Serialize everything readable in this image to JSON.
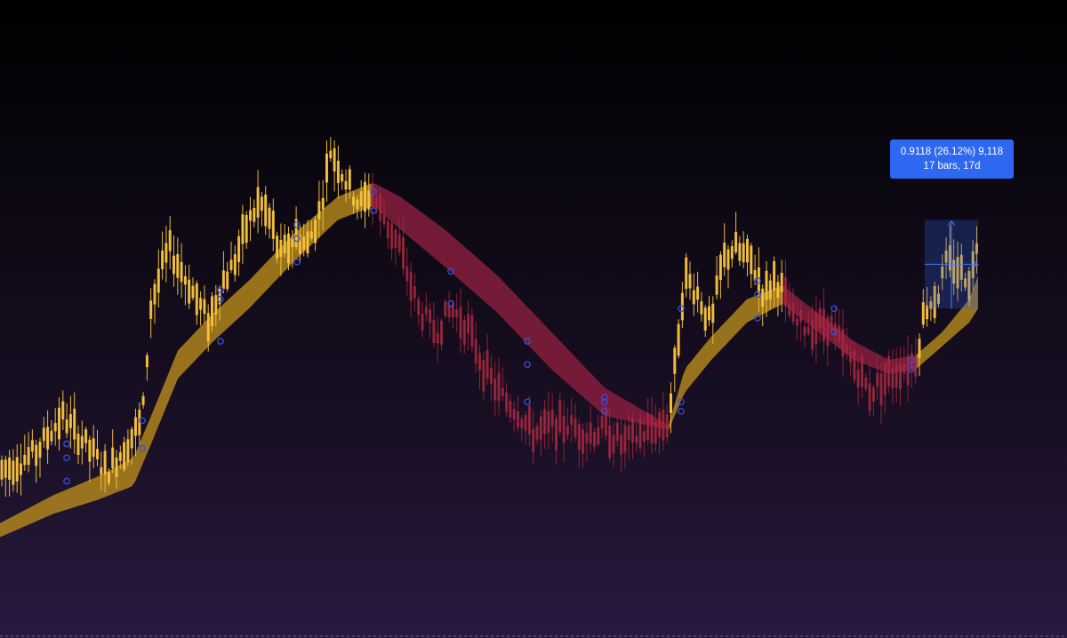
{
  "chart_data": {
    "type": "candlestick",
    "title": "",
    "xlabel": "",
    "ylabel": "",
    "ylim": [
      0,
      100
    ],
    "grid": false,
    "legend": "none",
    "colors": {
      "up_candle": "#f7c23c",
      "down_candle": "#a8283f",
      "ribbon_up": "#b5891c",
      "ribbon_down": "#8a1e3e",
      "marker": "#3a4fd8",
      "measure_box": "#2f5fe0",
      "tooltip_bg": "#2f68f0"
    },
    "price_path": [
      [
        0,
        16
      ],
      [
        40,
        20
      ],
      [
        70,
        28
      ],
      [
        100,
        21
      ],
      [
        120,
        16
      ],
      [
        140,
        21
      ],
      [
        160,
        27
      ],
      [
        170,
        52
      ],
      [
        190,
        64
      ],
      [
        210,
        57
      ],
      [
        235,
        48
      ],
      [
        248,
        56
      ],
      [
        262,
        60
      ],
      [
        276,
        68
      ],
      [
        292,
        74
      ],
      [
        306,
        69
      ],
      [
        315,
        62
      ],
      [
        334,
        67
      ],
      [
        345,
        64
      ],
      [
        360,
        72
      ],
      [
        372,
        85
      ],
      [
        390,
        78
      ],
      [
        405,
        73
      ],
      [
        418,
        76
      ],
      [
        430,
        71
      ],
      [
        450,
        64
      ],
      [
        470,
        51
      ],
      [
        490,
        46
      ],
      [
        508,
        51
      ],
      [
        526,
        47
      ],
      [
        545,
        38
      ],
      [
        565,
        32
      ],
      [
        582,
        29
      ],
      [
        600,
        24
      ],
      [
        620,
        26
      ],
      [
        640,
        26
      ],
      [
        660,
        24
      ],
      [
        680,
        25
      ],
      [
        700,
        22
      ],
      [
        720,
        24
      ],
      [
        742,
        26
      ],
      [
        752,
        27
      ],
      [
        760,
        40
      ],
      [
        770,
        58
      ],
      [
        785,
        54
      ],
      [
        800,
        47
      ],
      [
        812,
        61
      ],
      [
        825,
        64
      ],
      [
        845,
        61
      ],
      [
        860,
        54
      ],
      [
        872,
        58
      ],
      [
        880,
        55
      ],
      [
        893,
        48
      ],
      [
        910,
        47
      ],
      [
        932,
        48
      ],
      [
        950,
        42
      ],
      [
        965,
        38
      ],
      [
        978,
        33
      ],
      [
        995,
        36
      ],
      [
        1012,
        38
      ],
      [
        1030,
        40
      ],
      [
        1040,
        51
      ],
      [
        1055,
        54
      ],
      [
        1065,
        61
      ],
      [
        1080,
        59
      ],
      [
        1092,
        57
      ],
      [
        1100,
        67
      ]
    ],
    "ribbon": {
      "upper": [
        [
          0,
          5
        ],
        [
          60,
          11
        ],
        [
          110,
          15
        ],
        [
          150,
          19
        ],
        [
          170,
          28
        ],
        [
          200,
          42
        ],
        [
          240,
          50
        ],
        [
          280,
          57
        ],
        [
          330,
          67
        ],
        [
          380,
          75
        ],
        [
          420,
          78
        ],
        [
          450,
          75
        ],
        [
          500,
          68
        ],
        [
          560,
          58
        ],
        [
          620,
          46
        ],
        [
          680,
          34
        ],
        [
          752,
          26
        ],
        [
          770,
          38
        ],
        [
          800,
          45
        ],
        [
          840,
          53
        ],
        [
          880,
          56
        ],
        [
          920,
          50
        ],
        [
          960,
          44
        ],
        [
          1000,
          40
        ],
        [
          1030,
          41
        ],
        [
          1060,
          46
        ],
        [
          1090,
          53
        ],
        [
          1100,
          58
        ]
      ],
      "lower": [
        [
          0,
          2
        ],
        [
          60,
          7
        ],
        [
          110,
          10
        ],
        [
          150,
          13
        ],
        [
          170,
          22
        ],
        [
          200,
          36
        ],
        [
          240,
          44
        ],
        [
          280,
          51
        ],
        [
          330,
          61
        ],
        [
          380,
          70
        ],
        [
          420,
          73
        ],
        [
          450,
          68
        ],
        [
          500,
          60
        ],
        [
          560,
          50
        ],
        [
          620,
          38
        ],
        [
          680,
          28
        ],
        [
          752,
          25
        ],
        [
          770,
          33
        ],
        [
          800,
          40
        ],
        [
          840,
          48
        ],
        [
          880,
          52
        ],
        [
          920,
          46
        ],
        [
          960,
          40
        ],
        [
          1000,
          37
        ],
        [
          1030,
          38
        ],
        [
          1060,
          43
        ],
        [
          1090,
          48
        ],
        [
          1100,
          51
        ]
      ],
      "segments": [
        {
          "trend": "up",
          "from": 0,
          "to": 418
        },
        {
          "trend": "down",
          "from": 418,
          "to": 752
        },
        {
          "trend": "up",
          "from": 752,
          "to": 880
        },
        {
          "trend": "down",
          "from": 880,
          "to": 1030
        },
        {
          "trend": "up",
          "from": 1030,
          "to": 1100
        }
      ]
    },
    "markers": [
      [
        75,
        22
      ],
      [
        75,
        19
      ],
      [
        75,
        14
      ],
      [
        160,
        27
      ],
      [
        160,
        21
      ],
      [
        248,
        55
      ],
      [
        248,
        53
      ],
      [
        248,
        44
      ],
      [
        334,
        69
      ],
      [
        334,
        66
      ],
      [
        334,
        61
      ],
      [
        420,
        76
      ],
      [
        420,
        72
      ],
      [
        507,
        59
      ],
      [
        507,
        52
      ],
      [
        593,
        44
      ],
      [
        593,
        39
      ],
      [
        593,
        31
      ],
      [
        680,
        32
      ],
      [
        680,
        31
      ],
      [
        680,
        29
      ],
      [
        766,
        51
      ],
      [
        766,
        31
      ],
      [
        766,
        29
      ],
      [
        852,
        57
      ],
      [
        852,
        54
      ],
      [
        852,
        49
      ],
      [
        938,
        51
      ],
      [
        938,
        46
      ],
      [
        1025,
        40
      ],
      [
        1025,
        38
      ]
    ],
    "measure": {
      "x_start": 1040,
      "x_end": 1100,
      "y_low": 51,
      "y_high": 70,
      "label_line1": "0.9118 (26.12%) 9,118",
      "label_line2": "17 bars, 17d"
    }
  }
}
